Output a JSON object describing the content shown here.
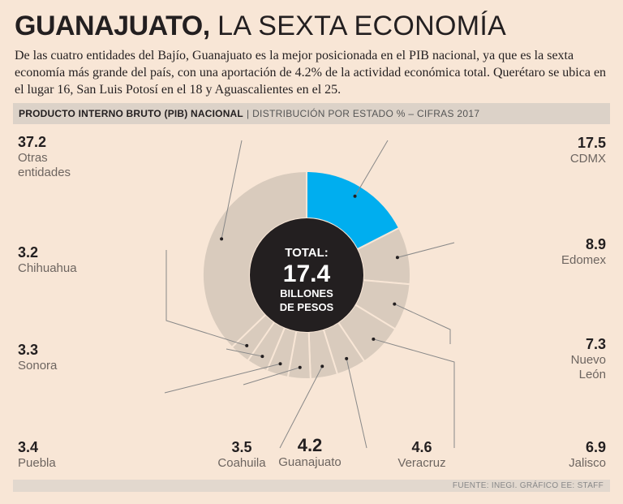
{
  "header": {
    "title_bold": "GUANAJUATO,",
    "title_rest": "LA SEXTA ECONOMÍA",
    "intro": "De las cuatro entidades del Bajío, Guanajuato es la mejor posicionada en el PIB nacional, ya que es la sexta economía más grande del país, con una aportación de 4.2% de la actividad económica total. Querétaro se ubica en el lugar 16, San Luis Potosí en el 18 y Aguascalientes en el 25."
  },
  "subtitle_bar": {
    "bold": "PRODUCTO INTERNO BRUTO (PIB) NACIONAL",
    "separator": "|",
    "rest": "DISTRIBUCIÓN POR ESTADO % – CIFRAS 2017"
  },
  "chart_data": {
    "type": "pie",
    "center_label": {
      "line1": "TOTAL:",
      "value": "17.4",
      "line3": "BILLONES",
      "line4": "DE PESOS"
    },
    "slices": [
      {
        "name": "CDMX",
        "value": 17.5,
        "label": "17.5",
        "lines": [
          "CDMX"
        ],
        "highlight": true
      },
      {
        "name": "Edomex",
        "value": 8.9,
        "label": "8.9",
        "lines": [
          "Edomex"
        ]
      },
      {
        "name": "Nuevo León",
        "value": 7.3,
        "label": "7.3",
        "lines": [
          "Nuevo",
          "León"
        ]
      },
      {
        "name": "Jalisco",
        "value": 6.9,
        "label": "6.9",
        "lines": [
          "Jalisco"
        ]
      },
      {
        "name": "Veracruz",
        "value": 4.6,
        "label": "4.6",
        "lines": [
          "Veracruz"
        ]
      },
      {
        "name": "Guanajuato",
        "value": 4.2,
        "label": "4.2",
        "lines": [
          "Guanajuato"
        ]
      },
      {
        "name": "Coahuila",
        "value": 3.5,
        "label": "3.5",
        "lines": [
          "Coahuila"
        ]
      },
      {
        "name": "Puebla",
        "value": 3.4,
        "label": "3.4",
        "lines": [
          "Puebla"
        ]
      },
      {
        "name": "Sonora",
        "value": 3.3,
        "label": "3.3",
        "lines": [
          "Sonora"
        ]
      },
      {
        "name": "Chihuahua",
        "value": 3.2,
        "label": "3.2",
        "lines": [
          "Chihuahua"
        ]
      },
      {
        "name": "Otras entidades",
        "value": 37.2,
        "label": "37.2",
        "lines": [
          "Otras",
          "entidades"
        ]
      }
    ],
    "colors": {
      "highlight": "#00aeef",
      "slice": "#d9cbbd",
      "stroke": "#f8e6d6",
      "center": "#231f20"
    }
  },
  "footer": {
    "source": "FUENTE: INEGI. GRÁFICO EE: STAFF"
  }
}
